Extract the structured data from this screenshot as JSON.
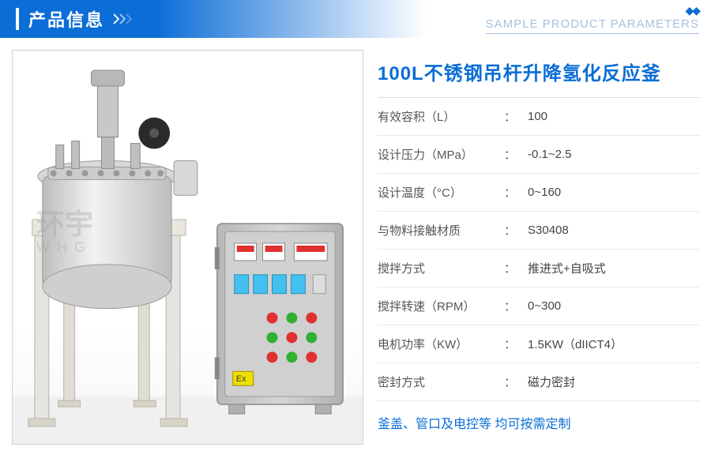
{
  "header": {
    "title_cn": "产品信息",
    "subtitle_en": "SAMPLE PRODUCT PARAMETERS",
    "accent_color": "#0b6dd6",
    "subtitle_color": "#a7c1dd"
  },
  "product": {
    "name": "100L不锈钢吊杆升降氢化反应釜",
    "name_color": "#0b6dd6"
  },
  "specs": [
    {
      "label": "有效容积（L）",
      "value": "100"
    },
    {
      "label": "设计压力（MPa）",
      "value": "-0.1~2.5"
    },
    {
      "label": "设计温度（°C）",
      "value": "0~160"
    },
    {
      "label": "与物料接触材质",
      "value": "S30408"
    },
    {
      "label": "搅拌方式",
      "value": "推进式+自吸式"
    },
    {
      "label": "搅拌转速（RPM）",
      "value": "0~300"
    },
    {
      "label": "电机功率（KW）",
      "value": "1.5KW（dIICT4）"
    },
    {
      "label": "密封方式",
      "value": "磁力密封"
    }
  ],
  "footnote": "釜盖、管口及电控等 均可按需定制",
  "colon": "：",
  "watermark": {
    "line1": "环宇",
    "line2": "W H G"
  },
  "equipment_svg": {
    "reactor_body_fill": "#d4d4d4",
    "reactor_body_stroke": "#9a9a9a",
    "frame_fill": "#e6e4df",
    "frame_stroke": "#b8b4a8",
    "cabinet_fill": "#c5c5c5",
    "cabinet_stroke": "#8a8a8a",
    "display_color": "#44c0f0",
    "red_btn": "#e03030",
    "green_btn": "#30b030",
    "floor_color": "#eeeeee"
  }
}
